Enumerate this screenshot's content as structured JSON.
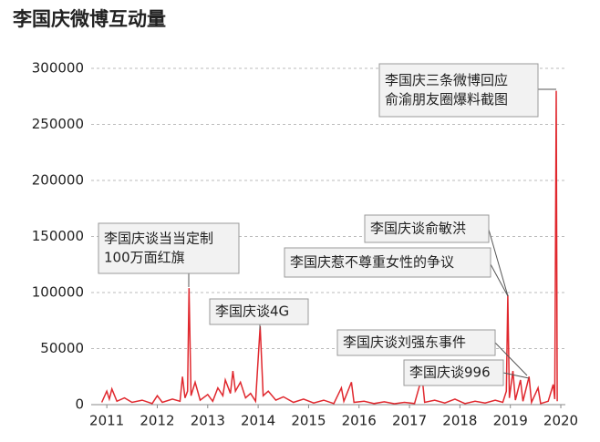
{
  "chart_data": {
    "type": "line",
    "title": "李国庆微博互动量",
    "x": [
      2010.9,
      2011.0,
      2011.05,
      2011.1,
      2011.2,
      2011.35,
      2011.5,
      2011.7,
      2011.9,
      2012.0,
      2012.1,
      2012.3,
      2012.45,
      2012.5,
      2012.55,
      2012.6,
      2012.63,
      2012.67,
      2012.75,
      2012.85,
      2013.0,
      2013.1,
      2013.2,
      2013.3,
      2013.35,
      2013.45,
      2013.5,
      2013.55,
      2013.65,
      2013.75,
      2013.85,
      2013.95,
      2014.04,
      2014.1,
      2014.2,
      2014.35,
      2014.5,
      2014.7,
      2014.9,
      2015.1,
      2015.3,
      2015.5,
      2015.65,
      2015.7,
      2015.85,
      2015.9,
      2016.1,
      2016.3,
      2016.5,
      2016.7,
      2016.9,
      2017.1,
      2017.25,
      2017.3,
      2017.5,
      2017.7,
      2017.9,
      2018.1,
      2018.3,
      2018.5,
      2018.7,
      2018.85,
      2018.92,
      2018.95,
      2018.98,
      2019.05,
      2019.1,
      2019.2,
      2019.25,
      2019.37,
      2019.42,
      2019.55,
      2019.6,
      2019.75,
      2019.85,
      2019.88,
      2019.91,
      2019.93
    ],
    "series": [
      {
        "name": "互动量",
        "color": "#e0282e",
        "values": [
          2000,
          12000,
          5000,
          14000,
          3000,
          6000,
          2000,
          4000,
          1000,
          8000,
          2000,
          5000,
          3000,
          25000,
          6000,
          12000,
          104000,
          8000,
          20000,
          4000,
          9000,
          3000,
          15000,
          8000,
          22000,
          10000,
          30000,
          12000,
          20000,
          6000,
          10000,
          3000,
          70000,
          8000,
          12000,
          4000,
          7000,
          2000,
          5000,
          1500,
          4000,
          1000,
          15000,
          3000,
          20000,
          2000,
          3000,
          1000,
          2500,
          800,
          2000,
          1000,
          25000,
          2000,
          4000,
          1500,
          5000,
          1000,
          3000,
          1500,
          4000,
          2000,
          12000,
          98000,
          6000,
          30000,
          4000,
          22000,
          3000,
          25000,
          2000,
          15000,
          1000,
          3000,
          18000,
          5000,
          280000,
          3000
        ]
      }
    ],
    "xlim": [
      2010.69,
      2020.09
    ],
    "xticks": [
      2011,
      2012,
      2013,
      2014,
      2015,
      2016,
      2017,
      2018,
      2019,
      2020
    ],
    "ylim": [
      0,
      300000
    ],
    "yticks": [
      0,
      50000,
      100000,
      150000,
      200000,
      250000,
      300000
    ],
    "grid": true,
    "annotations": [
      {
        "lines": [
          "李国庆三条微博回应",
          "俞渝朋友圈爆料截图"
        ]
      },
      {
        "lines": [
          "李国庆谈俞敏洪"
        ]
      },
      {
        "lines": [
          "李国庆惹不尊重女性的争议"
        ]
      },
      {
        "lines": [
          "李国庆谈当当定制",
          "100万面红旗"
        ]
      },
      {
        "lines": [
          "李国庆谈4G"
        ]
      },
      {
        "lines": [
          "李国庆谈刘强东事件"
        ]
      },
      {
        "lines": [
          "李国庆谈996"
        ]
      }
    ]
  }
}
